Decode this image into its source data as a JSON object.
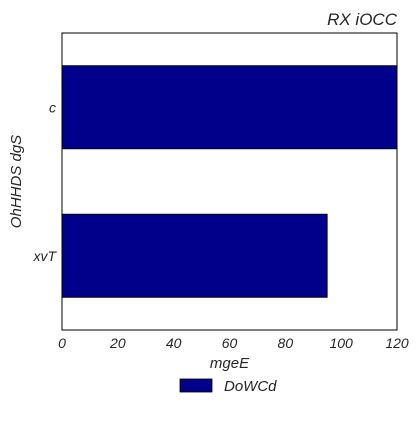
{
  "chart_data": {
    "type": "bar",
    "orientation": "horizontal",
    "title": "RX  iOCC",
    "xlabel": "mgeE",
    "ylabel": "OhHHDS dgS",
    "categories": [
      "c",
      "xvT"
    ],
    "series": [
      {
        "name": "DoWCd",
        "values": [
          120,
          95
        ],
        "color": "#00008b"
      }
    ],
    "xlim": [
      0,
      120
    ],
    "xticks": [
      "0",
      "20",
      "40",
      "60",
      "80",
      "100",
      "120"
    ],
    "grid": false,
    "legend_position": "bottom-center"
  }
}
